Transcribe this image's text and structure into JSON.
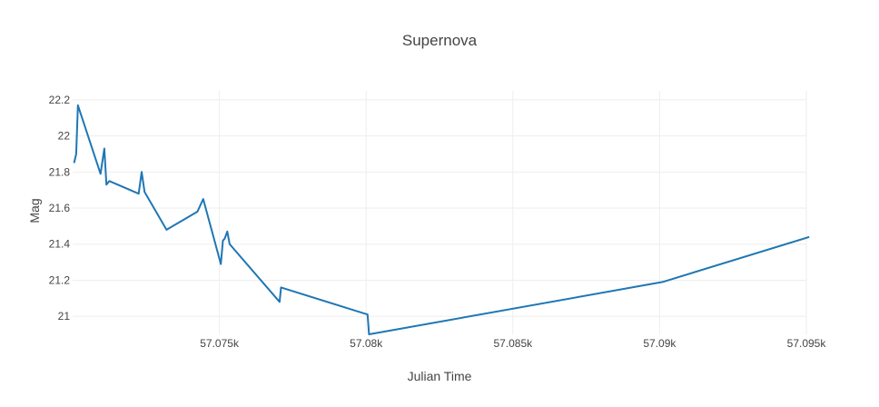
{
  "chart_data": {
    "type": "line",
    "title": "Supernova",
    "xlabel": "Julian Time",
    "ylabel": "Mag",
    "xlim": [
      57070,
      57095
    ],
    "ylim": [
      20.9,
      22.25
    ],
    "x_ticks": [
      57075,
      57080,
      57085,
      57090,
      57095
    ],
    "x_tick_labels": [
      "57.075k",
      "57.08k",
      "57.085k",
      "57.09k",
      "57.095k"
    ],
    "y_ticks": [
      21,
      21.2,
      21.4,
      21.6,
      21.8,
      22,
      22.2
    ],
    "y_tick_labels": [
      "21",
      "21.2",
      "21.4",
      "21.6",
      "21.8",
      "22",
      "22.2"
    ],
    "grid": true,
    "legend": "none",
    "series": [
      {
        "color": "#1f77b4",
        "x": [
          57070.05,
          57070.12,
          57070.18,
          57070.95,
          57071.08,
          57071.15,
          57071.25,
          57072.25,
          57072.35,
          57072.45,
          57073.2,
          57074.25,
          57074.45,
          57075.05,
          57075.12,
          57075.18,
          57075.27,
          57075.35,
          57077.05,
          57077.1,
          57080.05,
          57080.1,
          57090.1,
          57095.1
        ],
        "y": [
          21.85,
          21.9,
          22.17,
          21.79,
          21.93,
          21.73,
          21.75,
          21.68,
          21.8,
          21.69,
          21.48,
          21.58,
          21.65,
          21.29,
          21.42,
          21.43,
          21.47,
          21.4,
          21.08,
          21.16,
          21.01,
          20.9,
          21.19,
          21.44
        ]
      }
    ]
  }
}
